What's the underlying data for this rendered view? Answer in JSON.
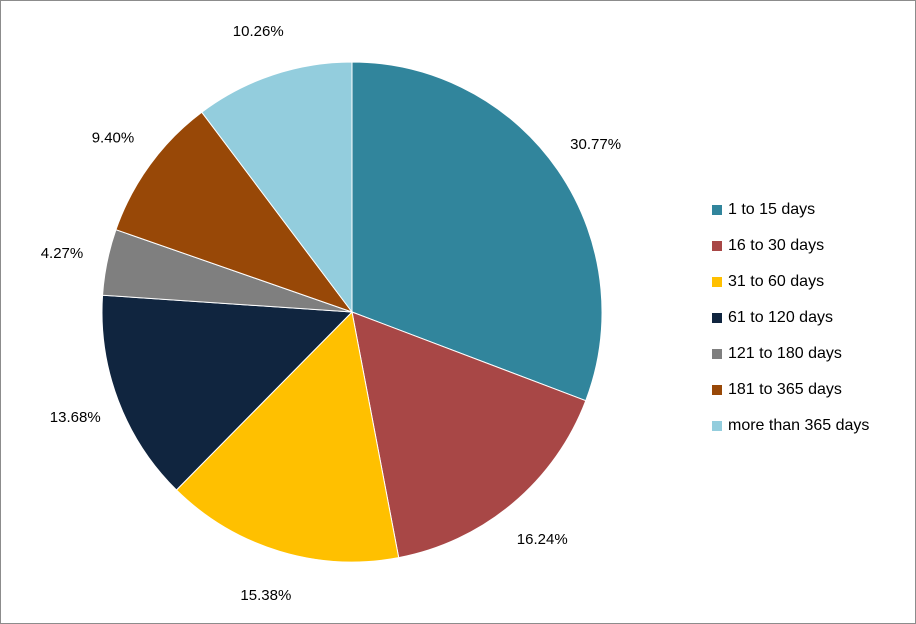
{
  "chart_data": {
    "type": "pie",
    "slices": [
      {
        "label": "1 to 15 days",
        "value": 30.77,
        "value_label": "30.77%",
        "color": "#31859C"
      },
      {
        "label": "16 to 30 days",
        "value": 16.24,
        "value_label": "16.24%",
        "color": "#A84746"
      },
      {
        "label": "31 to 60 days",
        "value": 15.38,
        "value_label": "15.38%",
        "color": "#FFC000"
      },
      {
        "label": "61 to 120 days",
        "value": 13.68,
        "value_label": "13.68%",
        "color": "#10253F"
      },
      {
        "label": "121 to 180 days",
        "value": 4.27,
        "value_label": "4.27%",
        "color": "#7F7F7F"
      },
      {
        "label": "181 to 365 days",
        "value": 9.4,
        "value_label": "9.40%",
        "color": "#984807"
      },
      {
        "label": "more than 365 days",
        "value": 10.26,
        "value_label": "10.26%",
        "color": "#93CDDD"
      }
    ],
    "start_angle": "12 o'clock",
    "direction": "clockwise",
    "legend_position": "right"
  }
}
